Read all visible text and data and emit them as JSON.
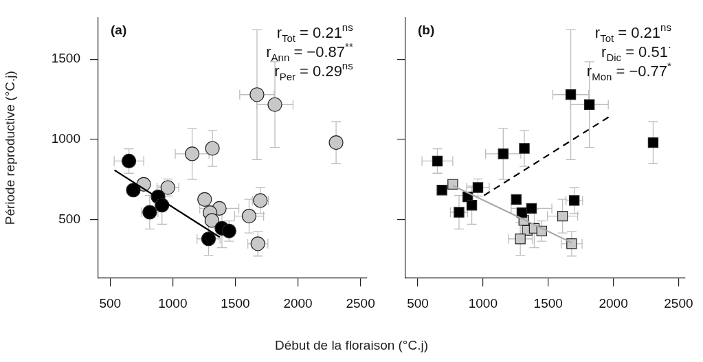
{
  "chart_data": [
    {
      "type": "scatter",
      "title": "(a)",
      "ylabel": "Période reproductive (°C.j)",
      "xlabel": "Début de la floraison (°C.j)",
      "xlim": [
        405,
        2550
      ],
      "ylim": [
        135,
        1760
      ],
      "xticks": [
        500,
        1000,
        1500,
        2000,
        2500
      ],
      "yticks": [
        500,
        1000,
        1500
      ],
      "marker": "circle",
      "grid": false,
      "annotations": [
        "r$_{Tot}$ = 0.21$^{ns}$",
        "r$_{Ann}$ = −0.87$^{**}$",
        "r$_{Per}$ = 0.29$^{ns}$"
      ],
      "series": [
        {
          "color": "#000000",
          "x": [
            650,
            685,
            883,
            914,
            816,
            1286,
            1393,
            1450
          ],
          "values": [
            865,
            684,
            642,
            590,
            546,
            380,
            446,
            429
          ],
          "errors": [
            76,
            null,
            null,
            119,
            104,
            102,
            121,
            63
          ],
          "xerrors": [
            118,
            null,
            null,
            null,
            66,
            92,
            null,
            null
          ]
        },
        {
          "color": "#c8c8c8",
          "x": [
            768,
            961,
            1155,
            1317,
            1255,
            1372,
            1298,
            1313,
            1610,
            1700,
            1680,
            1673,
            1816,
            2305
          ],
          "values": [
            720,
            700,
            910,
            944,
            626,
            570,
            543,
            495,
            522,
            619,
            350,
            1279,
            1217,
            980
          ],
          "errors": [
            null,
            53,
            159,
            112,
            null,
            null,
            null,
            null,
            105,
            80,
            77,
            405,
            267,
            130
          ],
          "xerrors": [
            null,
            87,
            135,
            null,
            null,
            156,
            null,
            null,
            116,
            64,
            80,
            138,
            145,
            null
          ]
        },
        {
          "type": "line",
          "marker": "none",
          "color": "#000000",
          "line_style": "solid",
          "x": [
            535,
            1375
          ],
          "values": [
            808,
            391
          ]
        }
      ]
    },
    {
      "type": "scatter",
      "title": "(b)",
      "xlim": [
        405,
        2550
      ],
      "ylim": [
        135,
        1760
      ],
      "xticks": [
        500,
        1000,
        1500,
        2000,
        2500
      ],
      "yticks": [
        500,
        1000,
        1500
      ],
      "tick_labels": "x",
      "marker": "square",
      "grid": false,
      "annotations": [
        "r$_{Tot}$ = 0.21$^{ns}$",
        "r$_{Dic}$ = 0.51$^{·}$",
        "r$_{Mon}$ = −0.77$^{*}$"
      ],
      "series": [
        {
          "color": "#000000",
          "x": [
            650,
            685,
            883,
            914,
            816,
            961,
            1155,
            1317,
            1255,
            1372,
            1298,
            1673,
            1816,
            2305,
            1700
          ],
          "values": [
            865,
            684,
            642,
            590,
            546,
            700,
            910,
            944,
            626,
            570,
            543,
            1279,
            1217,
            980,
            619
          ],
          "errors": [
            76,
            null,
            null,
            119,
            104,
            53,
            159,
            112,
            null,
            null,
            null,
            405,
            267,
            130,
            80
          ],
          "xerrors": [
            118,
            null,
            null,
            null,
            66,
            87,
            135,
            null,
            null,
            156,
            null,
            138,
            145,
            null,
            64
          ]
        },
        {
          "color": "#c8c8c8",
          "x": [
            768,
            1313,
            1339,
            1393,
            1450,
            1286,
            1610,
            1680
          ],
          "values": [
            720,
            495,
            433,
            446,
            429,
            380,
            522,
            350
          ],
          "errors": [
            null,
            null,
            null,
            121,
            63,
            102,
            105,
            77
          ],
          "xerrors": [
            null,
            null,
            null,
            null,
            null,
            92,
            116,
            80
          ]
        },
        {
          "type": "line",
          "marker": "none",
          "color": "#000000",
          "line_style": "dashed",
          "x": [
            1008,
            1969
          ],
          "values": [
            651,
            1142
          ]
        },
        {
          "type": "line",
          "marker": "none",
          "color": "#aaaaaa",
          "line_style": "solid",
          "x": [
            769,
            1680
          ],
          "values": [
            712,
            357
          ]
        }
      ]
    }
  ]
}
